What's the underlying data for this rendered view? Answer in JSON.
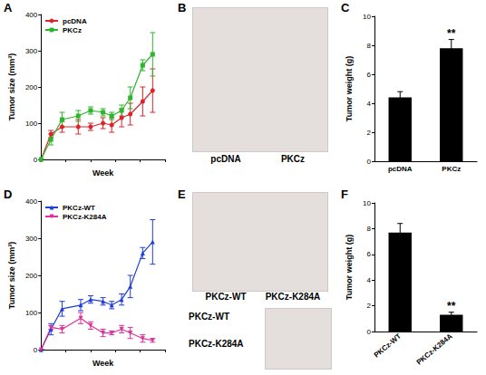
{
  "chart_data": [
    {
      "panel_label": "A",
      "type": "line",
      "x": [
        0,
        0.4,
        0.85,
        1.5,
        2,
        2.5,
        2.85,
        3.25,
        3.6,
        4.1,
        4.5
      ],
      "x_label": "Week",
      "y_label": "Tumor size (mm³)",
      "xlim": [
        0,
        5
      ],
      "xticks": [
        0,
        1,
        2,
        3,
        4,
        5
      ],
      "ylim": [
        0,
        400
      ],
      "yticks": [
        0,
        100,
        200,
        300,
        400
      ],
      "grid": false,
      "legend": "upper left",
      "tick_labels": "y",
      "series": [
        {
          "name": "pcDNA",
          "color": "#e0232a",
          "marker": "circle",
          "values": [
            0,
            70,
            90,
            90,
            90,
            100,
            95,
            115,
            125,
            160,
            190
          ],
          "errors": [
            0,
            10,
            15,
            20,
            10,
            15,
            20,
            25,
            30,
            40,
            60
          ]
        },
        {
          "name": "PKCz",
          "color": "#2db52d",
          "marker": "square",
          "values": [
            0,
            55,
            110,
            120,
            135,
            130,
            120,
            135,
            170,
            260,
            290
          ],
          "errors": [
            0,
            15,
            20,
            15,
            10,
            10,
            10,
            15,
            30,
            15,
            60
          ]
        }
      ]
    },
    {
      "panel_label": "C",
      "type": "bar",
      "categories": [
        "pcDNA",
        "PKCz"
      ],
      "values": [
        4.4,
        7.8
      ],
      "errors": [
        0.4,
        0.6
      ],
      "color": "#000000",
      "y_label": "Tumor weight (g)",
      "ylim": [
        0,
        10
      ],
      "yticks": [
        0,
        2,
        4,
        6,
        8,
        10
      ],
      "grid": false,
      "annotations": [
        {
          "category": "PKCz",
          "text": "**"
        }
      ]
    },
    {
      "panel_label": "D",
      "type": "line",
      "x": [
        0,
        0.4,
        0.85,
        1.6,
        2,
        2.5,
        2.85,
        3.25,
        3.6,
        4.1,
        4.5
      ],
      "x_label": "Week",
      "y_label": "Tumor size (mm³)",
      "xlim": [
        0,
        5
      ],
      "xticks": [
        0,
        1,
        2,
        3,
        4,
        5
      ],
      "ylim": [
        0,
        400
      ],
      "yticks": [
        0,
        100,
        200,
        300,
        400
      ],
      "grid": false,
      "legend": "upper left",
      "tick_labels": "y",
      "series": [
        {
          "name": "PKCz-WT",
          "color": "#1f3fd8",
          "marker": "triangle",
          "values": [
            0,
            55,
            110,
            120,
            135,
            130,
            120,
            135,
            170,
            260,
            290
          ],
          "errors": [
            0,
            15,
            20,
            15,
            10,
            10,
            10,
            15,
            30,
            15,
            60
          ]
        },
        {
          "name": "PKCz-K284A",
          "color": "#e0309a",
          "marker": "inverted triangle",
          "values": [
            0,
            60,
            55,
            85,
            65,
            45,
            45,
            55,
            45,
            30,
            25
          ],
          "errors": [
            0,
            5,
            10,
            15,
            10,
            10,
            5,
            10,
            15,
            10,
            5
          ]
        }
      ]
    },
    {
      "panel_label": "F",
      "type": "bar",
      "categories": [
        "PKCz-WT",
        "PKCz-K284A"
      ],
      "values": [
        7.7,
        1.3
      ],
      "errors": [
        0.7,
        0.2
      ],
      "color": "#000000",
      "y_label": "Tumor weight (g)",
      "ylim": [
        0,
        10
      ],
      "yticks": [
        0,
        2,
        4,
        6,
        8,
        10
      ],
      "grid": false,
      "annotations": [
        {
          "category": "PKCz-K284A",
          "text": "**"
        }
      ]
    }
  ],
  "images": [
    {
      "panel_label": "B",
      "captions": [
        "pcDNA",
        "PKCz"
      ]
    },
    {
      "panel_label": "E",
      "captions": [
        "PKCz-WT",
        "PKCz-K284A"
      ],
      "specimen_labels": [
        "PKCz-WT",
        "PKCz-K284A"
      ]
    }
  ]
}
